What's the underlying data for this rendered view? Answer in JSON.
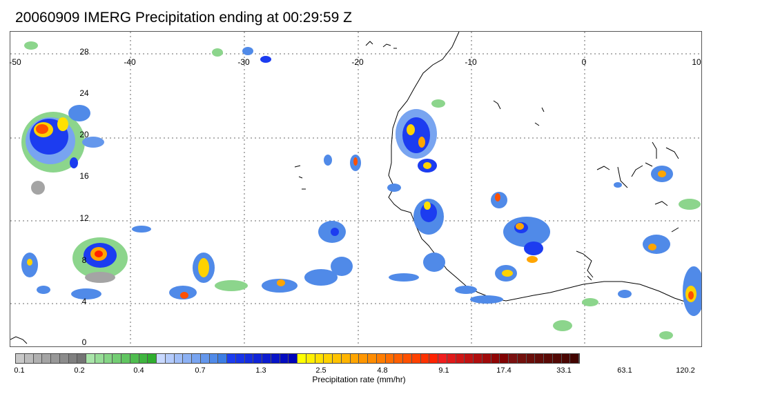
{
  "title": "20060909 IMERG Precipitation ending at 00:29:59 Z",
  "map": {
    "lon_labels": [
      "-50",
      "-40",
      "-30",
      "-20",
      "-10",
      "0",
      "10"
    ],
    "lat_labels": [
      "28",
      "24",
      "20",
      "16",
      "12",
      "8",
      "4",
      "0"
    ],
    "gridlines": "dotted",
    "coastline_color": "#000000",
    "region": "Tropical North Atlantic and West Africa"
  },
  "legend": {
    "units_label": "Precipitation rate (mm/hr)",
    "tick_labels": [
      "0.1",
      "0.2",
      "0.4",
      "0.7",
      "1.3",
      "2.5",
      "4.8",
      "9.1",
      "17.4",
      "33.1",
      "63.1",
      "120.2"
    ],
    "colors": [
      "#c8c8c8",
      "#bcbcbc",
      "#b0b0b0",
      "#a4a4a4",
      "#989898",
      "#8c8c8c",
      "#808080",
      "#747474",
      "#a9e5a9",
      "#97dd97",
      "#85d585",
      "#73cd73",
      "#61c561",
      "#4fbd4f",
      "#3fb53f",
      "#2fad2f",
      "#c8d8ff",
      "#b4cbfc",
      "#a0bef8",
      "#8cb1f4",
      "#78a4f0",
      "#6497ec",
      "#508ae8",
      "#3c7de4",
      "#1c3cf0",
      "#1834e8",
      "#142ce0",
      "#1024d8",
      "#0c1cd0",
      "#0814c8",
      "#040cc0",
      "#0004b8",
      "#ffff00",
      "#fff000",
      "#ffe100",
      "#ffd200",
      "#ffc300",
      "#ffb400",
      "#ffa500",
      "#ff9600",
      "#ff8c00",
      "#ff7d00",
      "#ff6e00",
      "#ff5f00",
      "#ff5000",
      "#ff4100",
      "#ff3200",
      "#ff2300",
      "#f01e1e",
      "#e01a1a",
      "#d01616",
      "#c01212",
      "#b00e0e",
      "#a00a0a",
      "#900606",
      "#800202",
      "#7a1010",
      "#72100c",
      "#6a0e0a",
      "#620c08",
      "#5a0a06",
      "#520804",
      "#4a0602",
      "#420400"
    ]
  }
}
